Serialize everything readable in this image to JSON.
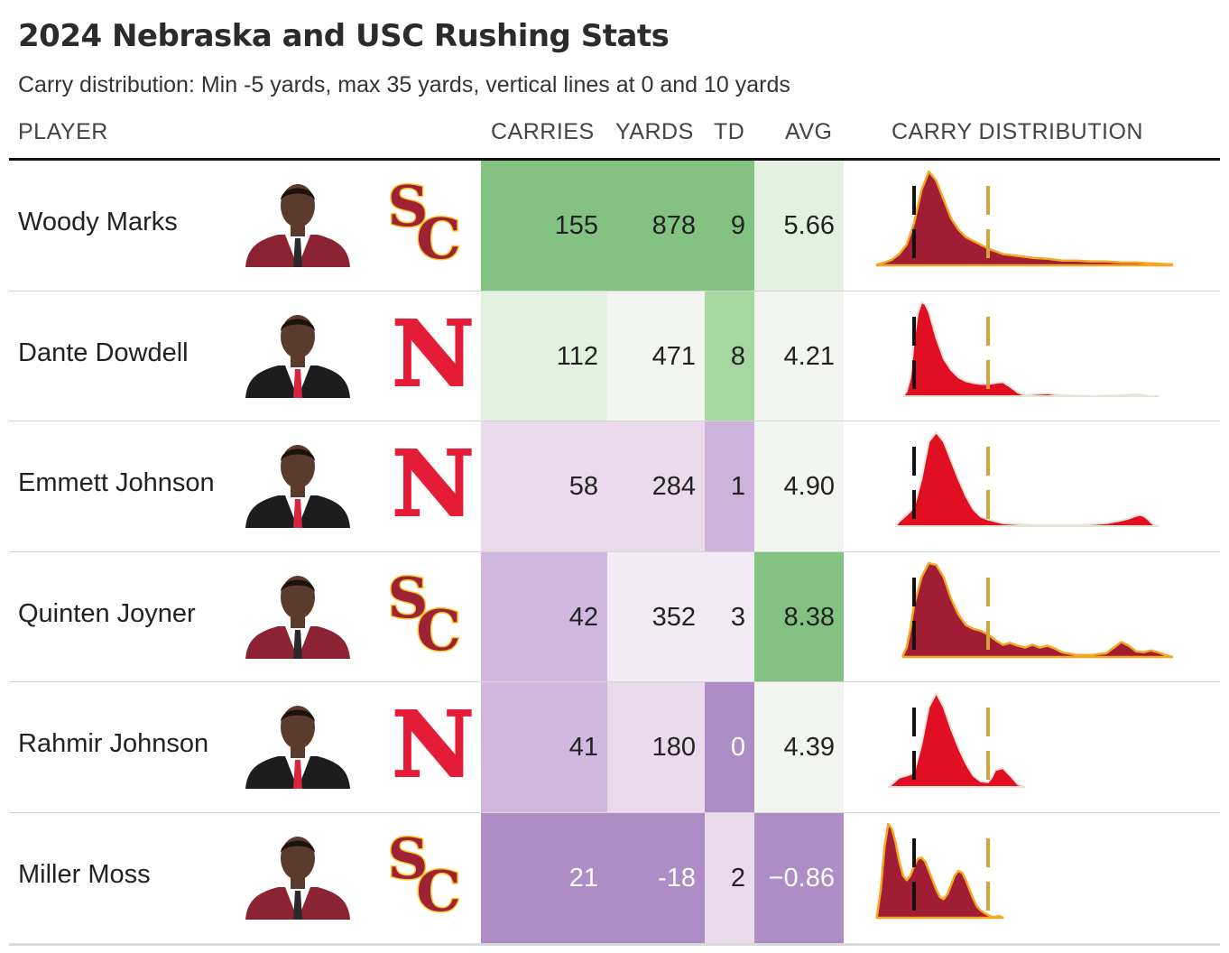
{
  "title": "2024 Nebraska and USC Rushing Stats",
  "subtitle": "Carry distribution: Min -5 yards, max 35 yards, vertical lines at 0 and 10 yards",
  "headers": {
    "player": "PLAYER",
    "carries": "CARRIES",
    "yards": "YARDS",
    "td": "TD",
    "avg": "AVG",
    "distribution": "CARRY DISTRIBUTION"
  },
  "colors": {
    "usc_fill": "#a11d33",
    "usc_stroke": "#f5a623",
    "neb_fill": "#e20f22",
    "neb_stroke": "#e8e3d8",
    "zero_line": "#111111",
    "ten_line": "#d4a43a"
  },
  "chart_data": {
    "type": "table",
    "distribution_range": [
      -5,
      35
    ],
    "reference_lines": [
      0,
      10
    ],
    "columns": [
      "PLAYER",
      "CARRIES",
      "YARDS",
      "TD",
      "AVG",
      "CARRY DISTRIBUTION"
    ],
    "rows": [
      {
        "player": "Woody Marks",
        "team": "USC",
        "logo_icon": "usc-sc-logo",
        "carries": "155",
        "yards": "878",
        "td": "9",
        "avg": "5.66",
        "cell_colors": {
          "carries": "#83c283",
          "yards": "#83c283",
          "td": "#83c283",
          "avg": "#e3f2e0"
        },
        "distribution_x": [
          -5,
          -4,
          -3,
          -2,
          -1,
          0,
          1,
          2,
          3,
          4,
          5,
          6,
          7,
          8,
          9,
          10,
          12,
          14,
          16,
          18,
          20,
          22,
          24,
          26,
          28,
          30,
          32,
          35
        ],
        "distribution_y": [
          0.01,
          0.03,
          0.06,
          0.12,
          0.22,
          0.45,
          0.8,
          1.0,
          0.9,
          0.7,
          0.5,
          0.38,
          0.3,
          0.26,
          0.22,
          0.18,
          0.12,
          0.1,
          0.08,
          0.07,
          0.05,
          0.05,
          0.04,
          0.04,
          0.03,
          0.03,
          0.02,
          0.01
        ]
      },
      {
        "player": "Dante Dowdell",
        "team": "Nebraska",
        "logo_icon": "nebraska-n-logo",
        "carries": "112",
        "yards": "471",
        "td": "8",
        "avg": "4.21",
        "cell_colors": {
          "carries": "#e3f2e0",
          "yards": "#f2f5f0",
          "td": "#a7d7a1",
          "avg": "#f2f5f0"
        },
        "distribution_x": [
          -1.5,
          -1,
          -0.5,
          0,
          0.5,
          1,
          1.5,
          2,
          3,
          4,
          5,
          6,
          7,
          8,
          9,
          10,
          11,
          12,
          13,
          14,
          15,
          16,
          18,
          20,
          24,
          28,
          30,
          31,
          32,
          33
        ],
        "distribution_y": [
          0,
          0.05,
          0.2,
          0.6,
          0.88,
          1.0,
          0.98,
          0.9,
          0.62,
          0.4,
          0.28,
          0.2,
          0.16,
          0.14,
          0.13,
          0.13,
          0.14,
          0.15,
          0.1,
          0.04,
          0.01,
          0.02,
          0.03,
          0.01,
          0,
          0.01,
          0.02,
          0.01,
          0,
          0
        ]
      },
      {
        "player": "Emmett Johnson",
        "team": "Nebraska",
        "logo_icon": "nebraska-n-logo",
        "carries": "58",
        "yards": "284",
        "td": "1",
        "avg": "4.90",
        "cell_colors": {
          "carries": "#e9dbec",
          "yards": "#e9dbec",
          "td": "#cdb2dc",
          "avg": "#f2f5f0"
        },
        "distribution_x": [
          -2.5,
          -2,
          -1,
          0,
          1,
          2,
          3,
          4,
          5,
          6,
          7,
          8,
          9,
          10,
          11,
          12,
          14,
          16,
          18,
          20,
          22,
          24,
          26,
          28,
          29,
          30,
          30.5,
          31,
          31.5,
          32,
          32.5,
          33
        ],
        "distribution_y": [
          0,
          0.05,
          0.12,
          0.2,
          0.5,
          0.9,
          1.0,
          0.9,
          0.7,
          0.5,
          0.32,
          0.18,
          0.1,
          0.07,
          0.05,
          0.03,
          0.02,
          0.01,
          0.01,
          0.01,
          0.01,
          0.02,
          0.03,
          0.06,
          0.08,
          0.11,
          0.12,
          0.11,
          0.08,
          0.04,
          0.01,
          0
        ]
      },
      {
        "player": "Quinten Joyner",
        "team": "USC",
        "logo_icon": "usc-sc-logo",
        "carries": "42",
        "yards": "352",
        "td": "3",
        "avg": "8.38",
        "cell_colors": {
          "carries": "#d0b8de",
          "yards": "#f3ebf3",
          "td": "#f3ebf3",
          "avg": "#83c283"
        },
        "distribution_x": [
          -1.5,
          -1,
          -0.5,
          0,
          1,
          2,
          3,
          4,
          5,
          6,
          7,
          8,
          9,
          10,
          11,
          12,
          13,
          14,
          15,
          16,
          17,
          18,
          19,
          20,
          22,
          24,
          26,
          27,
          28,
          29,
          30,
          31,
          32,
          33,
          34,
          35
        ],
        "distribution_y": [
          0.02,
          0.1,
          0.3,
          0.55,
          0.85,
          1.0,
          0.98,
          0.85,
          0.62,
          0.45,
          0.34,
          0.3,
          0.28,
          0.24,
          0.18,
          0.13,
          0.15,
          0.12,
          0.1,
          0.13,
          0.1,
          0.12,
          0.09,
          0.05,
          0.02,
          0.02,
          0.04,
          0.1,
          0.16,
          0.12,
          0.06,
          0.05,
          0.07,
          0.05,
          0.02,
          0
        ]
      },
      {
        "player": "Rahmir Johnson",
        "team": "Nebraska",
        "logo_icon": "nebraska-n-logo",
        "carries": "41",
        "yards": "180",
        "td": "0",
        "avg": "4.39",
        "cell_colors": {
          "carries": "#d0b8de",
          "yards": "#e9dbec",
          "td": "#ae8cc6",
          "avg": "#f2f5f0"
        },
        "distribution_x": [
          -3.5,
          -3,
          -2,
          -1,
          0,
          1,
          2,
          3,
          4,
          5,
          6,
          7,
          8,
          9,
          10,
          10.5,
          11,
          12,
          13,
          14,
          15
        ],
        "distribution_y": [
          0,
          0.03,
          0.1,
          0.12,
          0.15,
          0.45,
          0.85,
          1.0,
          0.85,
          0.62,
          0.42,
          0.25,
          0.12,
          0.06,
          0.05,
          0.1,
          0.18,
          0.2,
          0.12,
          0.03,
          0
        ]
      },
      {
        "player": "Miller Moss",
        "team": "USC",
        "logo_icon": "usc-sc-logo",
        "carries": "21",
        "yards": "-18",
        "td": "2",
        "avg": "−0.86",
        "cell_colors": {
          "carries": "#ae8cc6",
          "yards": "#ae8cc6",
          "td": "#e9dbec",
          "avg": "#ae8cc6"
        },
        "distribution_x": [
          -5,
          -4.5,
          -4,
          -3.5,
          -3,
          -2.5,
          -2,
          -1.5,
          -1,
          -0.5,
          0,
          0.5,
          1,
          1.5,
          2,
          2.5,
          3,
          3.5,
          4,
          4.5,
          5,
          5.5,
          6,
          6.5,
          7,
          7.5,
          8,
          8.5,
          9,
          9.5,
          10,
          10.5,
          11,
          11.5,
          12
        ],
        "distribution_y": [
          0.03,
          0.3,
          0.75,
          1.0,
          0.95,
          0.8,
          0.6,
          0.45,
          0.4,
          0.45,
          0.55,
          0.63,
          0.64,
          0.6,
          0.5,
          0.4,
          0.3,
          0.22,
          0.2,
          0.25,
          0.35,
          0.45,
          0.5,
          0.48,
          0.4,
          0.3,
          0.2,
          0.12,
          0.08,
          0.05,
          0.03,
          0.01,
          0.01,
          0.02,
          0
        ]
      }
    ]
  }
}
